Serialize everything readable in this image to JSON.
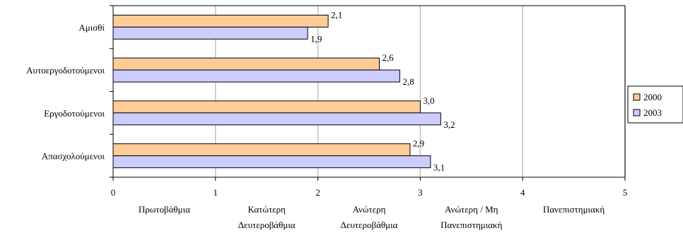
{
  "chart_data": {
    "type": "bar",
    "orientation": "horizontal",
    "categories": [
      "Αμισθί",
      "Αυτοεργοδοτούμενοι",
      "Εργοδοτούμενοι",
      "Απασχολούμενοι"
    ],
    "series": [
      {
        "name": "2000",
        "values": [
          2.1,
          2.6,
          3.0,
          2.9
        ],
        "labels": [
          "2,1",
          "2,6",
          "3,0",
          "2,9"
        ],
        "color": "#ffcc99"
      },
      {
        "name": "2003",
        "values": [
          1.9,
          2.8,
          3.2,
          3.1
        ],
        "labels": [
          "1,9",
          "2,8",
          "3,2",
          "3,1"
        ],
        "color": "#ccccff"
      }
    ],
    "xlim": [
      0,
      5
    ],
    "x_ticks": [
      "0",
      "1",
      "2",
      "3",
      "4",
      "5"
    ],
    "x_tick_categories": [
      {
        "line1": "Πρωτοβάθμια",
        "line2": ""
      },
      {
        "line1": "Κατώτερη",
        "line2": "Δευτεροβάθμια"
      },
      {
        "line1": "Ανώτερη",
        "line2": "Δευτεροβάθμια"
      },
      {
        "line1": "Ανώτερη / Μη",
        "line2": "Πανεπιστημιακή"
      },
      {
        "line1": "Πανεπιστημιακή",
        "line2": ""
      }
    ],
    "grid": true,
    "legend_position": "right"
  }
}
